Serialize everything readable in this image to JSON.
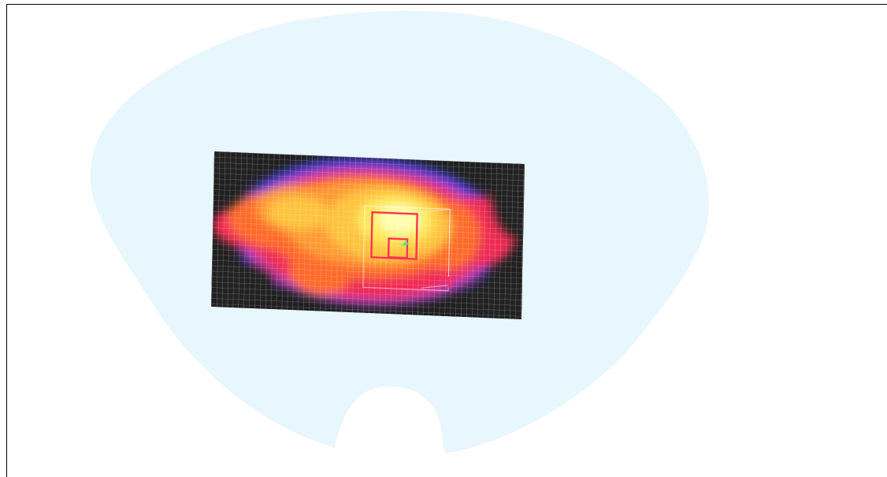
{
  "viewer": {
    "background_color": "#ffffff",
    "border_color": "#000000"
  },
  "scalp": {
    "fill_color": "#e8f6fd",
    "head_outline_icon": "head-outline-icon"
  },
  "heatmap": {
    "colormap": [
      "#202020",
      "#3b3bd0",
      "#c83aa6",
      "#ee2a52",
      "#ff6a2a",
      "#ff9a30",
      "#ffc33c",
      "#ffe85a",
      "#ffffb0"
    ],
    "grid_line_color": "#ffffff",
    "cursor_box_color": "#ff3355",
    "marker_color": "#55e08a"
  }
}
